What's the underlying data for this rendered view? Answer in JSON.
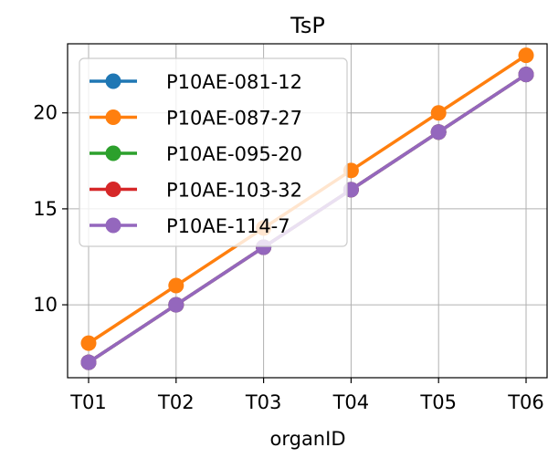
{
  "chart_data": {
    "type": "line",
    "title": "TsP",
    "xlabel": "organID",
    "ylabel": "",
    "categories": [
      "T01",
      "T02",
      "T03",
      "T04",
      "T05",
      "T06"
    ],
    "ylim": [
      6.2,
      23.6
    ],
    "yticks": [
      10,
      15,
      20
    ],
    "grid": true,
    "legend_position": "upper-left",
    "series": [
      {
        "name": "P10AE-081-12",
        "color": "#1f77b4",
        "values": [
          7,
          10,
          13,
          16,
          19,
          22
        ]
      },
      {
        "name": "P10AE-087-27",
        "color": "#ff7f0e",
        "values": [
          8,
          11,
          14,
          17,
          20,
          23
        ]
      },
      {
        "name": "P10AE-095-20",
        "color": "#2ca02c",
        "values": [
          7,
          10,
          13,
          16,
          19,
          22
        ]
      },
      {
        "name": "P10AE-103-32",
        "color": "#d62728",
        "values": [
          7,
          10,
          13,
          16,
          19,
          22
        ]
      },
      {
        "name": "P10AE-114-7",
        "color": "#9467bd",
        "values": [
          7,
          10,
          13,
          16,
          19,
          22
        ]
      }
    ]
  }
}
